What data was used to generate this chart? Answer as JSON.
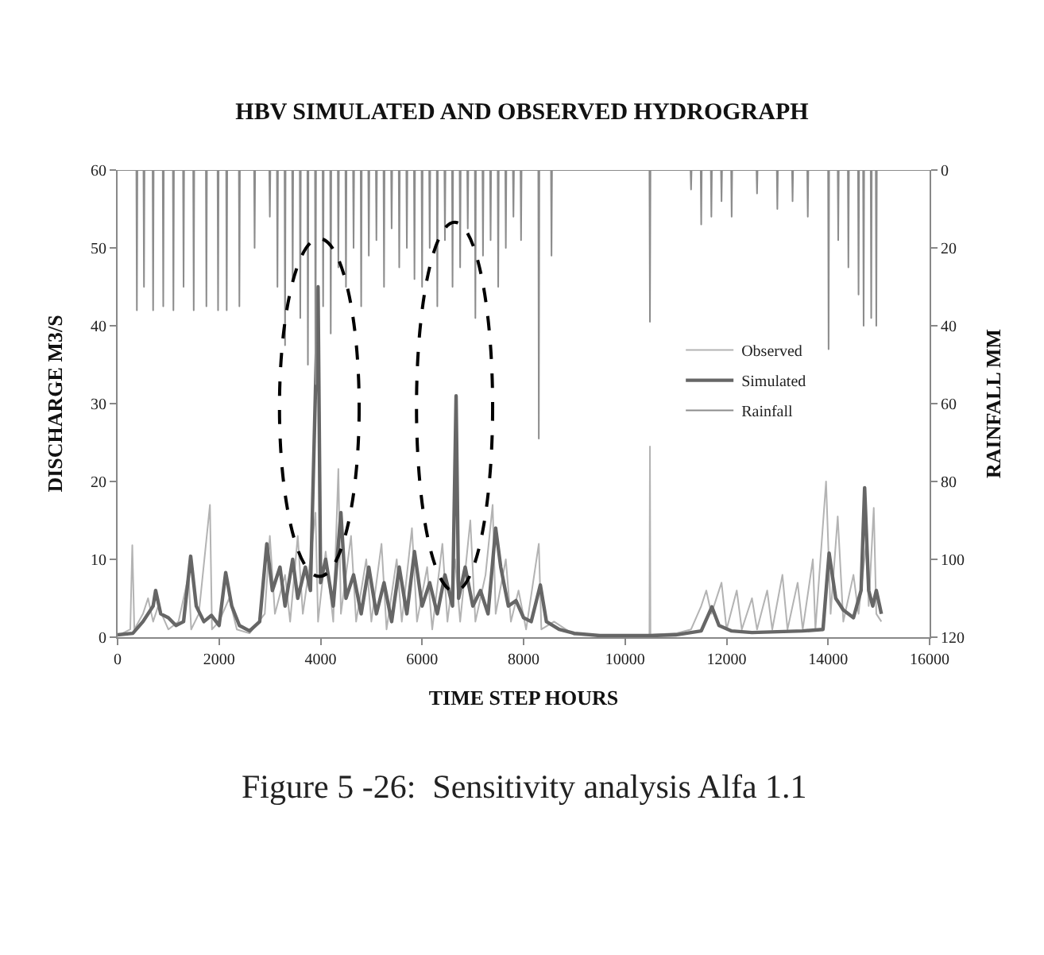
{
  "chart_data": {
    "type": "line",
    "title": "HBV SIMULATED AND OBSERVED HYDROGRAPH",
    "xlabel": "TIME STEP HOURS",
    "ylabel": "DISCHARGE M3/S",
    "y2label": "RAINFALL MM",
    "xlim": [
      0,
      16000
    ],
    "xticks": [
      0,
      2000,
      4000,
      6000,
      8000,
      10000,
      12000,
      14000,
      16000
    ],
    "ylim": [
      0,
      60
    ],
    "yticks": [
      0,
      10,
      20,
      30,
      40,
      50,
      60
    ],
    "y2lim": [
      120,
      0
    ],
    "y2ticks": [
      0,
      20,
      40,
      60,
      80,
      100,
      120
    ],
    "grid": false,
    "legend": "right",
    "marker": "none",
    "line_style": "solid",
    "annotations": [
      "Figure 5 -26:  Sensitivity analysis Alfa 1.1"
    ],
    "series": [
      {
        "name": "Observed",
        "color": "#b3b3b3",
        "x": [
          0,
          250,
          290,
          330,
          500,
          600,
          700,
          800,
          1000,
          1200,
          1400,
          1450,
          1600,
          1820,
          1860,
          2000,
          2200,
          2350,
          2600,
          2900,
          3000,
          3100,
          3300,
          3400,
          3550,
          3650,
          3800,
          3900,
          3950,
          4100,
          4250,
          4350,
          4400,
          4600,
          4700,
          4900,
          5000,
          5200,
          5300,
          5500,
          5600,
          5800,
          5900,
          6100,
          6200,
          6400,
          6500,
          6650,
          6750,
          6950,
          7050,
          7250,
          7390,
          7450,
          7650,
          7750,
          7900,
          8050,
          8300,
          8350,
          8600,
          9000,
          9500,
          10000,
          10480,
          10490,
          10500,
          11000,
          11300,
          11500,
          11600,
          11700,
          11900,
          12000,
          12200,
          12300,
          12500,
          12600,
          12800,
          12900,
          13100,
          13200,
          13400,
          13500,
          13700,
          13750,
          13960,
          14050,
          14190,
          14300,
          14500,
          14600,
          14750,
          14800,
          14900,
          14950,
          15050
        ],
        "values": [
          0.2,
          1,
          11.8,
          1,
          3,
          5,
          2,
          4,
          1,
          2,
          8,
          1,
          3,
          17,
          1,
          2,
          5,
          1,
          0.5,
          3,
          13,
          3,
          8,
          2,
          13,
          3,
          10,
          16,
          2,
          11,
          2,
          21.6,
          3,
          13,
          2,
          10,
          2,
          12,
          1,
          10,
          2,
          14,
          2,
          9,
          1,
          12,
          2,
          10,
          2,
          15,
          2,
          8,
          17,
          3,
          10,
          2,
          6,
          1,
          12,
          1,
          2,
          0.3,
          0.2,
          0.3,
          0.3,
          24.5,
          0.3,
          0.5,
          1,
          4,
          6,
          3,
          7,
          1,
          6,
          1,
          5,
          1,
          6,
          1,
          8,
          1,
          7,
          1,
          10,
          1,
          20,
          3,
          15.5,
          2,
          8,
          3,
          12,
          4,
          16.6,
          3,
          2
        ]
      },
      {
        "name": "Simulated",
        "color": "#666666",
        "x": [
          0,
          300,
          500,
          700,
          750,
          850,
          1000,
          1150,
          1300,
          1440,
          1550,
          1700,
          1850,
          2000,
          2130,
          2250,
          2400,
          2600,
          2800,
          2940,
          3050,
          3200,
          3300,
          3450,
          3550,
          3700,
          3800,
          3950,
          4000,
          4100,
          4250,
          4400,
          4500,
          4650,
          4800,
          4950,
          5100,
          5250,
          5400,
          5550,
          5700,
          5850,
          6000,
          6150,
          6300,
          6450,
          6600,
          6670,
          6720,
          6850,
          7000,
          7150,
          7300,
          7450,
          7550,
          7700,
          7850,
          8000,
          8150,
          8330,
          8450,
          8700,
          9000,
          9500,
          10000,
          10500,
          11000,
          11500,
          11710,
          11850,
          12100,
          12500,
          13000,
          13500,
          13900,
          14020,
          14150,
          14300,
          14500,
          14650,
          14720,
          14800,
          14880,
          14950,
          15050
        ],
        "values": [
          0.3,
          0.5,
          2,
          4,
          6,
          3,
          2.5,
          1.5,
          2,
          10.4,
          4,
          2,
          2.8,
          1.5,
          8.3,
          4,
          1.5,
          0.8,
          2,
          12,
          6,
          9,
          4,
          10,
          5,
          9,
          6,
          45,
          7,
          10,
          4,
          16,
          5,
          8,
          3,
          9,
          3,
          7,
          2,
          9,
          3,
          11,
          4,
          7,
          3,
          8,
          4,
          31,
          5,
          9,
          4,
          6,
          3,
          14,
          9,
          4,
          4.7,
          2.5,
          2,
          6.7,
          2,
          1,
          0.5,
          0.2,
          0.2,
          0.2,
          0.3,
          0.8,
          3.9,
          1.5,
          0.8,
          0.6,
          0.7,
          0.8,
          1,
          10.8,
          5,
          3.5,
          2.5,
          6,
          19.2,
          6,
          4,
          6,
          3
        ]
      },
      {
        "name": "Rainfall",
        "color": "#8c8c8c",
        "axis": "y2",
        "x": [
          0,
          370,
          380,
          390,
          510,
          520,
          530,
          690,
          700,
          710,
          890,
          900,
          910,
          1090,
          1100,
          1110,
          1290,
          1300,
          1310,
          1490,
          1500,
          1510,
          1740,
          1750,
          1760,
          1970,
          1980,
          1990,
          2140,
          2150,
          2160,
          2390,
          2400,
          2410,
          2690,
          2700,
          2710,
          2990,
          3000,
          3010,
          3140,
          3150,
          3160,
          3290,
          3300,
          3310,
          3440,
          3450,
          3460,
          3590,
          3600,
          3610,
          3740,
          3750,
          3760,
          3890,
          3900,
          3910,
          4040,
          4050,
          4060,
          4190,
          4200,
          4210,
          4340,
          4350,
          4360,
          4490,
          4500,
          4510,
          4640,
          4650,
          4660,
          4790,
          4800,
          4810,
          4940,
          4950,
          4960,
          5090,
          5100,
          5110,
          5240,
          5250,
          5260,
          5390,
          5400,
          5410,
          5540,
          5550,
          5560,
          5690,
          5700,
          5710,
          5840,
          5850,
          5860,
          5990,
          6000,
          6010,
          6140,
          6150,
          6160,
          6290,
          6300,
          6310,
          6440,
          6450,
          6460,
          6590,
          6600,
          6610,
          6740,
          6750,
          6760,
          6890,
          6900,
          6910,
          7040,
          7050,
          7060,
          7190,
          7200,
          7210,
          7340,
          7350,
          7360,
          7490,
          7500,
          7510,
          7640,
          7650,
          7660,
          7790,
          7800,
          7810,
          7940,
          7950,
          7960,
          8290,
          8300,
          8310,
          8540,
          8550,
          8560,
          10480,
          10490,
          10500,
          11290,
          11300,
          11310,
          11490,
          11500,
          11510,
          11690,
          11700,
          11710,
          11890,
          11900,
          11910,
          12090,
          12100,
          12110,
          12590,
          12600,
          12610,
          12990,
          13000,
          13010,
          13290,
          13300,
          13310,
          13590,
          13600,
          13610,
          14000,
          14010,
          14020,
          14190,
          14200,
          14210,
          14390,
          14400,
          14410,
          14590,
          14600,
          14610,
          14690,
          14700,
          14710,
          14840,
          14850,
          14860,
          14940,
          14950,
          14960,
          15000,
          16000
        ],
        "values": [
          0,
          0,
          36,
          0,
          0,
          30,
          0,
          0,
          36,
          0,
          0,
          35,
          0,
          0,
          36,
          0,
          0,
          30,
          0,
          0,
          36,
          0,
          0,
          35,
          0,
          0,
          36,
          0,
          0,
          36,
          0,
          0,
          35,
          0,
          0,
          20,
          0,
          0,
          12,
          0,
          0,
          30,
          0,
          0,
          45,
          0,
          0,
          28,
          0,
          0,
          38,
          0,
          0,
          50,
          0,
          0,
          55,
          0,
          0,
          35,
          0,
          0,
          42,
          0,
          0,
          25,
          0,
          0,
          30,
          0,
          0,
          20,
          0,
          0,
          35,
          0,
          0,
          22,
          0,
          0,
          18,
          0,
          0,
          30,
          0,
          0,
          15,
          0,
          0,
          25,
          0,
          0,
          20,
          0,
          0,
          28,
          0,
          0,
          30,
          0,
          0,
          20,
          0,
          0,
          35,
          0,
          0,
          18,
          0,
          0,
          30,
          0,
          0,
          25,
          0,
          0,
          15,
          0,
          0,
          38,
          0,
          0,
          22,
          0,
          0,
          18,
          0,
          0,
          30,
          0,
          0,
          20,
          0,
          0,
          12,
          0,
          0,
          18,
          0,
          0,
          69,
          0,
          0,
          22,
          0,
          0,
          39,
          0,
          0,
          5,
          0,
          0,
          14,
          0,
          0,
          12,
          0,
          0,
          8,
          0,
          0,
          12,
          0,
          0,
          6,
          0,
          0,
          10,
          0,
          0,
          8,
          0,
          0,
          12,
          0,
          0,
          46,
          0,
          0,
          18,
          0,
          0,
          25,
          0,
          0,
          32,
          0,
          0,
          40,
          0,
          0,
          38,
          0,
          0,
          40,
          0,
          0,
          0
        ]
      }
    ]
  }
}
